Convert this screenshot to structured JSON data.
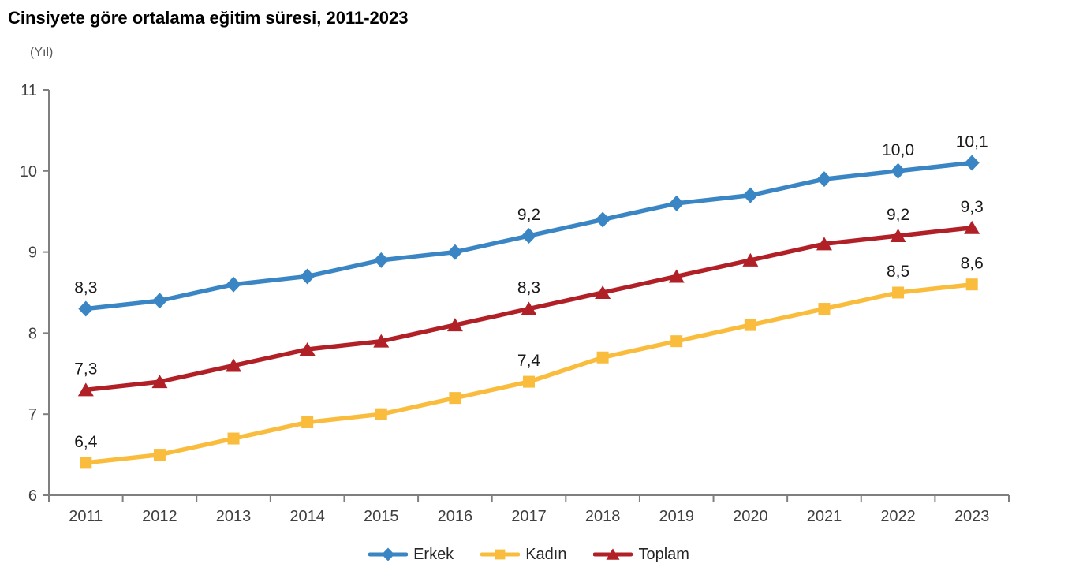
{
  "chart_data": {
    "type": "line",
    "title": "Cinsiyete göre ortalama eğitim süresi, 2011-2023",
    "unit_label": "(Yıl)",
    "xlabel": "",
    "ylabel": "(Yıl)",
    "x": [
      2011,
      2012,
      2013,
      2014,
      2015,
      2016,
      2017,
      2018,
      2019,
      2020,
      2021,
      2022,
      2023
    ],
    "ylim": [
      6,
      11
    ],
    "y_ticks": [
      6,
      7,
      8,
      9,
      10,
      11
    ],
    "grid": false,
    "legend_position": "bottom",
    "decimal_separator": ",",
    "labeled_years": [
      2011,
      2017,
      2022,
      2023
    ],
    "series": [
      {
        "name": "Erkek",
        "color": "#3A85C4",
        "marker": "diamond",
        "values": [
          8.3,
          8.4,
          8.6,
          8.7,
          8.9,
          9.0,
          9.2,
          9.4,
          9.6,
          9.7,
          9.9,
          10.0,
          10.1
        ],
        "labels": {
          "2011": "8,3",
          "2017": "9,2",
          "2022": "10,0",
          "2023": "10,1"
        }
      },
      {
        "name": "Kadın",
        "color": "#F9BC3D",
        "marker": "square",
        "values": [
          6.4,
          6.5,
          6.7,
          6.9,
          7.0,
          7.2,
          7.4,
          7.7,
          7.9,
          8.1,
          8.3,
          8.5,
          8.6
        ],
        "labels": {
          "2011": "6,4",
          "2017": "7,4",
          "2022": "8,5",
          "2023": "8,6"
        }
      },
      {
        "name": "Toplam",
        "color": "#B02026",
        "marker": "triangle",
        "values": [
          7.3,
          7.4,
          7.6,
          7.8,
          7.9,
          8.1,
          8.3,
          8.5,
          8.7,
          8.9,
          9.1,
          9.2,
          9.3
        ],
        "labels": {
          "2011": "7,3",
          "2017": "8,3",
          "2022": "9,2",
          "2023": "9,3"
        }
      }
    ],
    "colors": {
      "axis": "#7f7f7f",
      "tick_label": "#404040",
      "point_label": "#1a1a1a",
      "title": "#000000",
      "unit": "#595959"
    }
  }
}
